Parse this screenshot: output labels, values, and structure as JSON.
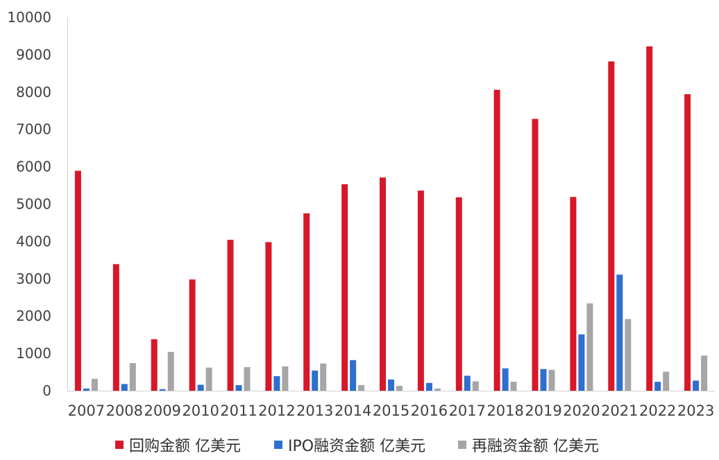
{
  "chart_data": {
    "type": "bar",
    "categories": [
      "2007",
      "2008",
      "2009",
      "2010",
      "2011",
      "2012",
      "2013",
      "2014",
      "2015",
      "2016",
      "2017",
      "2018",
      "2019",
      "2020",
      "2021",
      "2022",
      "2023"
    ],
    "series": [
      {
        "name": "回购金额 亿美元",
        "color": "#d7182a",
        "values": [
          5890,
          3390,
          1380,
          2980,
          4040,
          3980,
          4750,
          5530,
          5710,
          5360,
          5180,
          8060,
          7280,
          5190,
          8820,
          9220,
          7940
        ]
      },
      {
        "name": "IPO融资金额 亿美元",
        "color": "#2e6fd0",
        "values": [
          60,
          180,
          40,
          160,
          150,
          390,
          540,
          820,
          300,
          210,
          400,
          600,
          580,
          1510,
          3110,
          240,
          270
        ]
      },
      {
        "name": "再融资金额 亿美元",
        "color": "#a6a6a6",
        "values": [
          320,
          740,
          1040,
          620,
          630,
          650,
          730,
          150,
          130,
          60,
          250,
          240,
          560,
          2340,
          1920,
          510,
          940
        ]
      }
    ],
    "yticks": [
      "0",
      "1000",
      "2000",
      "3000",
      "4000",
      "5000",
      "6000",
      "7000",
      "8000",
      "9000",
      "10000"
    ],
    "ylim": [
      0,
      10000
    ],
    "title": "",
    "xlabel": "",
    "ylabel": "",
    "grid": false,
    "legend_position": "bottom"
  }
}
